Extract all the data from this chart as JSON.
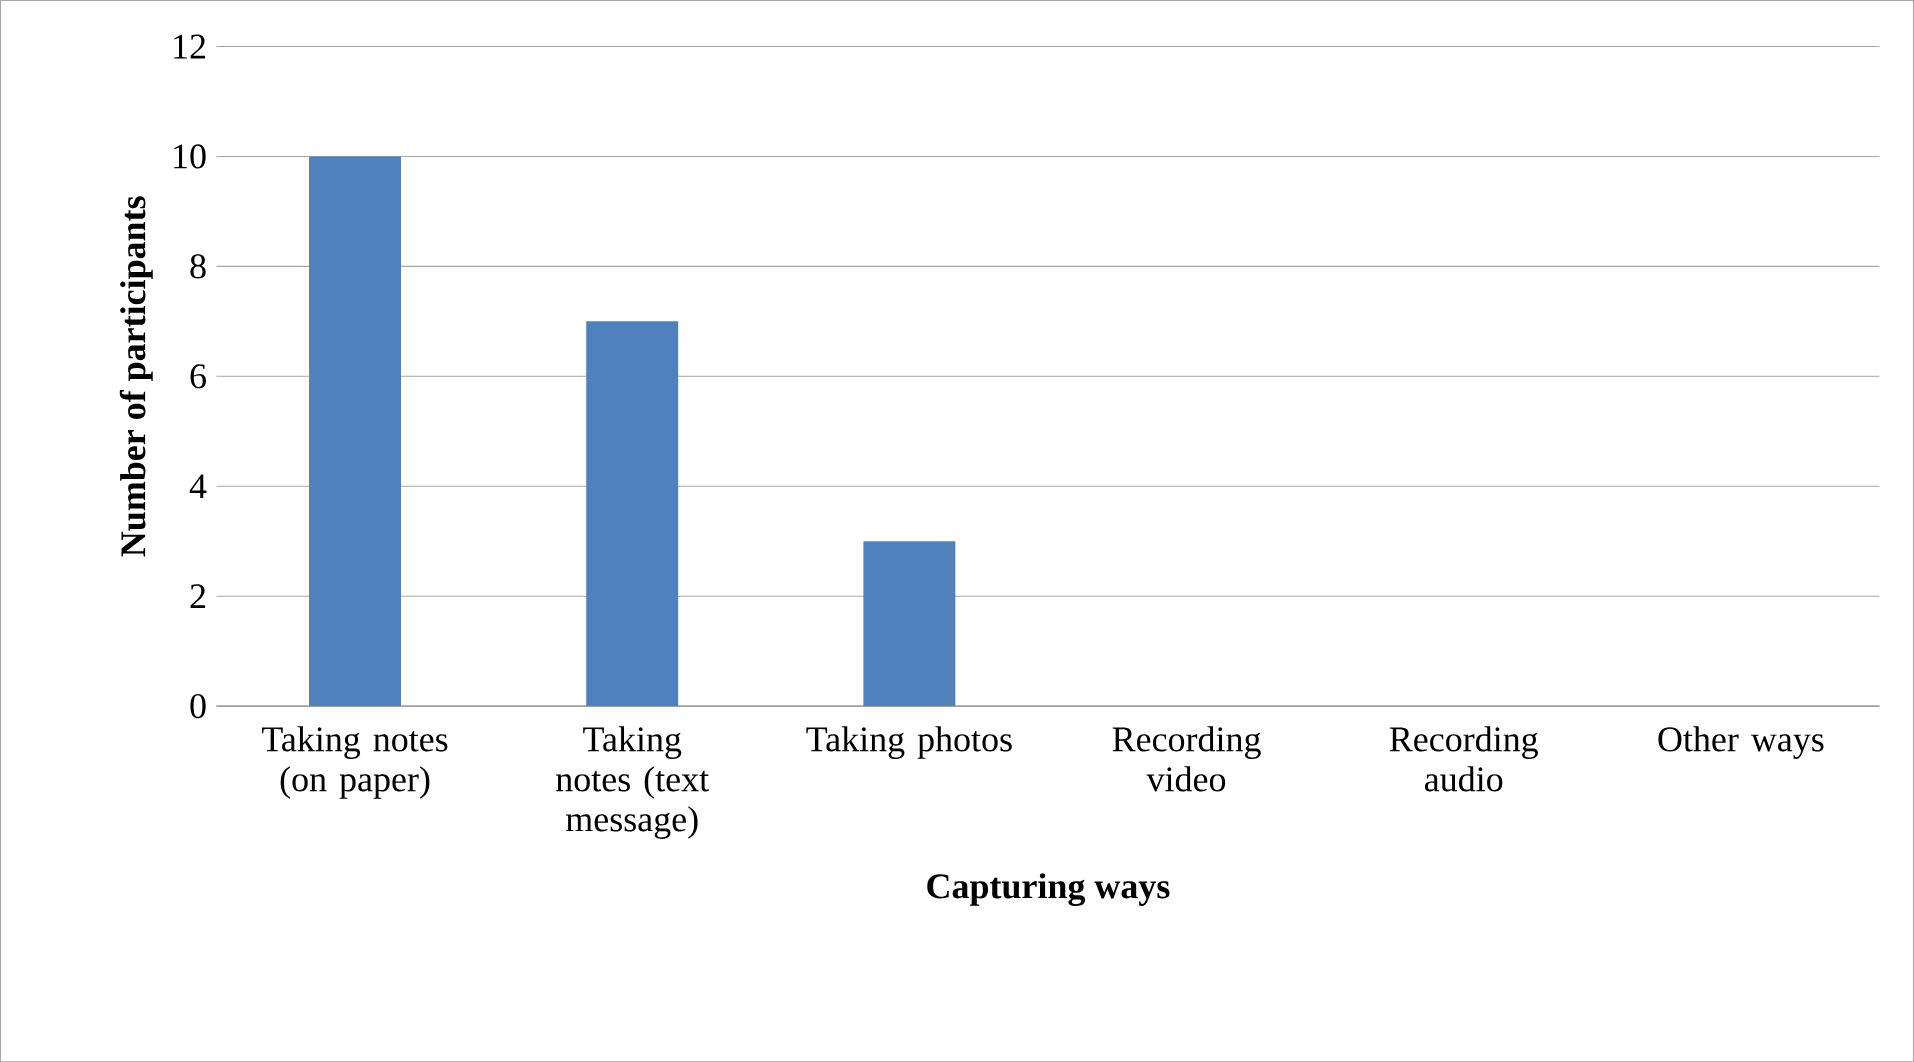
{
  "chart_data": {
    "type": "bar",
    "xlabel": "Capturing ways",
    "ylabel": "Number of participants",
    "categories": [
      "Taking notes (on paper)",
      "Taking notes (text message)",
      "Taking photos",
      "Recording video",
      "Recording audio",
      "Other ways"
    ],
    "values": [
      10,
      7,
      3,
      0,
      0,
      0
    ],
    "color": "#4f81bd",
    "ylim": [
      0,
      12
    ],
    "yticks": [
      0,
      2,
      4,
      6,
      8,
      10,
      12
    ],
    "grid": "y"
  }
}
